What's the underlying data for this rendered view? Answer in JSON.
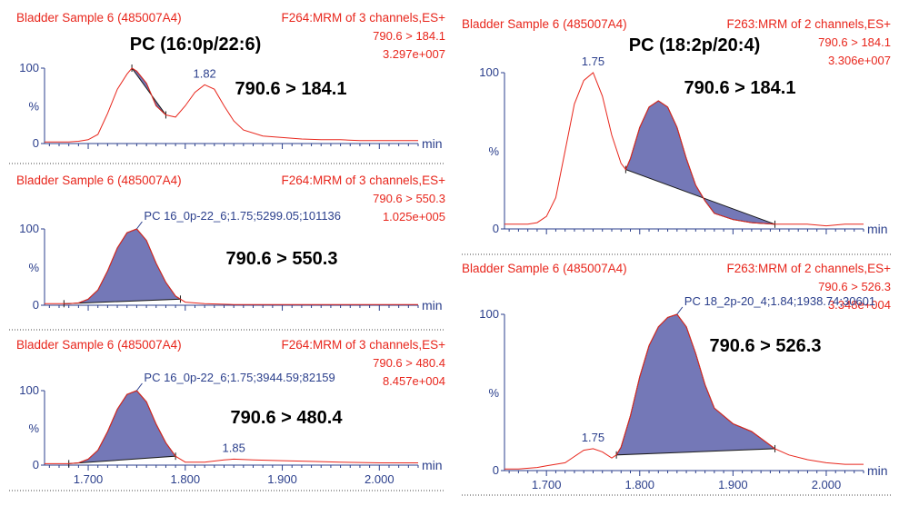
{
  "chart_data": [
    {
      "type": "line",
      "title": "PC (16:0p/22:6)",
      "sample": "Bladder Sample 6 (485007A4)",
      "function": "F264:MRM of 3 channels,ES+",
      "transition": "790.6 > 184.1",
      "intensity": "3.297e+007",
      "callout": "790.6 > 184.1",
      "peak_labels": [
        {
          "x": 1.82,
          "y": 78,
          "text": "1.82"
        }
      ],
      "y_ticks": [
        "100",
        "%",
        "0"
      ],
      "x_unit": "min",
      "xlim": [
        1.655,
        2.04
      ],
      "ylim": [
        0,
        100
      ],
      "shaded": [
        1.745,
        1.78
      ],
      "series": [
        {
          "x": [
            1.655,
            1.66,
            1.67,
            1.68,
            1.69,
            1.7,
            1.71,
            1.72,
            1.73,
            1.74,
            1.745,
            1.75,
            1.76,
            1.77,
            1.78,
            1.79,
            1.8,
            1.81,
            1.82,
            1.83,
            1.84,
            1.85,
            1.86,
            1.88,
            1.9,
            1.92,
            1.94,
            1.96,
            1.98,
            2.0,
            2.02,
            2.04
          ],
          "y": [
            2,
            2,
            2,
            2,
            3,
            5,
            12,
            40,
            72,
            92,
            100,
            96,
            80,
            50,
            38,
            35,
            50,
            68,
            78,
            72,
            50,
            30,
            18,
            10,
            8,
            6,
            5,
            5,
            4,
            4,
            4,
            4
          ]
        }
      ]
    },
    {
      "type": "line",
      "sample": "Bladder Sample 6 (485007A4)",
      "function": "F264:MRM of 3 channels,ES+",
      "transition": "790.6 > 550.3",
      "intensity": "1.025e+005",
      "callout": "790.6 > 550.3",
      "peak_labels": [
        {
          "x": 1.75,
          "y": 100,
          "text": "PC 16_0p-22_6;1.75;5299.05;101136"
        }
      ],
      "y_ticks": [
        "100",
        "%",
        "0"
      ],
      "x_unit": "min",
      "xlim": [
        1.655,
        2.04
      ],
      "ylim": [
        0,
        100
      ],
      "shaded": [
        1.675,
        1.795
      ],
      "series": [
        {
          "x": [
            1.655,
            1.67,
            1.68,
            1.69,
            1.7,
            1.71,
            1.72,
            1.73,
            1.74,
            1.75,
            1.76,
            1.77,
            1.78,
            1.79,
            1.8,
            1.82,
            1.85,
            1.9,
            1.95,
            2.0,
            2.04
          ],
          "y": [
            2,
            2,
            2,
            3,
            8,
            20,
            45,
            75,
            95,
            100,
            85,
            55,
            30,
            12,
            4,
            2,
            1,
            1,
            1,
            1,
            1
          ]
        }
      ]
    },
    {
      "type": "line",
      "sample": "Bladder Sample 6 (485007A4)",
      "function": "F264:MRM of 3 channels,ES+",
      "transition": "790.6 > 480.4",
      "intensity": "8.457e+004",
      "callout": "790.6 > 480.4",
      "peak_labels": [
        {
          "x": 1.75,
          "y": 100,
          "text": "PC 16_0p-22_6;1.75;3944.59;82159"
        },
        {
          "x": 1.85,
          "y": 8,
          "text": "1.85"
        }
      ],
      "y_ticks": [
        "100",
        "%",
        "0"
      ],
      "x_ticks": [
        "1.700",
        "1.800",
        "1.900",
        "2.000"
      ],
      "x_unit": "min",
      "xlim": [
        1.655,
        2.04
      ],
      "ylim": [
        0,
        100
      ],
      "shaded": [
        1.68,
        1.79
      ],
      "series": [
        {
          "x": [
            1.655,
            1.67,
            1.68,
            1.69,
            1.7,
            1.71,
            1.72,
            1.73,
            1.74,
            1.75,
            1.76,
            1.77,
            1.78,
            1.79,
            1.8,
            1.82,
            1.84,
            1.85,
            1.87,
            1.9,
            1.93,
            1.96,
            2.0,
            2.04
          ],
          "y": [
            2,
            2,
            2,
            3,
            8,
            20,
            45,
            75,
            95,
            100,
            85,
            55,
            30,
            12,
            4,
            4,
            7,
            8,
            7,
            6,
            5,
            4,
            3,
            3
          ]
        }
      ]
    },
    {
      "type": "line",
      "title": "PC (18:2p/20:4)",
      "sample": "Bladder Sample 6 (485007A4)",
      "function": "F263:MRM of 2 channels,ES+",
      "transition": "790.6 > 184.1",
      "intensity": "3.306e+007",
      "callout": "790.6 > 184.1",
      "peak_labels": [
        {
          "x": 1.75,
          "y": 100,
          "text": "1.75"
        }
      ],
      "y_ticks": [
        "100",
        "%",
        "0"
      ],
      "x_unit": "min",
      "xlim": [
        1.655,
        2.04
      ],
      "ylim": [
        0,
        100
      ],
      "shaded": [
        1.785,
        1.945
      ],
      "series": [
        {
          "x": [
            1.655,
            1.67,
            1.68,
            1.69,
            1.7,
            1.71,
            1.72,
            1.73,
            1.74,
            1.75,
            1.76,
            1.77,
            1.78,
            1.785,
            1.79,
            1.8,
            1.81,
            1.82,
            1.83,
            1.84,
            1.85,
            1.86,
            1.87,
            1.88,
            1.9,
            1.92,
            1.945,
            1.96,
            1.98,
            2.0,
            2.02,
            2.04
          ],
          "y": [
            3,
            3,
            3,
            4,
            8,
            20,
            50,
            80,
            95,
            100,
            85,
            60,
            42,
            38,
            45,
            65,
            78,
            82,
            78,
            65,
            45,
            28,
            18,
            10,
            6,
            4,
            3,
            3,
            3,
            2,
            3,
            3
          ]
        }
      ]
    },
    {
      "type": "line",
      "sample": "Bladder Sample 6 (485007A4)",
      "function": "F263:MRM of 2 channels,ES+",
      "transition": "790.6 > 526.3",
      "intensity": "3.348e+004",
      "callout": "790.6 > 526.3",
      "peak_labels": [
        {
          "x": 1.84,
          "y": 100,
          "text": "PC 18_2p-20_4;1.84;1938.74;30601"
        },
        {
          "x": 1.75,
          "y": 14,
          "text": "1.75"
        }
      ],
      "y_ticks": [
        "100",
        "%",
        "0"
      ],
      "x_ticks": [
        "1.700",
        "1.800",
        "1.900",
        "2.000"
      ],
      "x_unit": "min",
      "xlim": [
        1.655,
        2.04
      ],
      "ylim": [
        0,
        100
      ],
      "shaded": [
        1.775,
        1.945
      ],
      "series": [
        {
          "x": [
            1.655,
            1.67,
            1.69,
            1.7,
            1.72,
            1.73,
            1.74,
            1.75,
            1.76,
            1.77,
            1.775,
            1.78,
            1.79,
            1.8,
            1.81,
            1.82,
            1.83,
            1.84,
            1.85,
            1.86,
            1.87,
            1.88,
            1.9,
            1.92,
            1.945,
            1.96,
            1.98,
            2.0,
            2.02,
            2.04
          ],
          "y": [
            1,
            1,
            2,
            3,
            5,
            9,
            13,
            14,
            12,
            8,
            10,
            15,
            35,
            60,
            80,
            92,
            98,
            100,
            92,
            75,
            55,
            40,
            30,
            25,
            14,
            10,
            7,
            5,
            4,
            4
          ]
        }
      ]
    }
  ]
}
